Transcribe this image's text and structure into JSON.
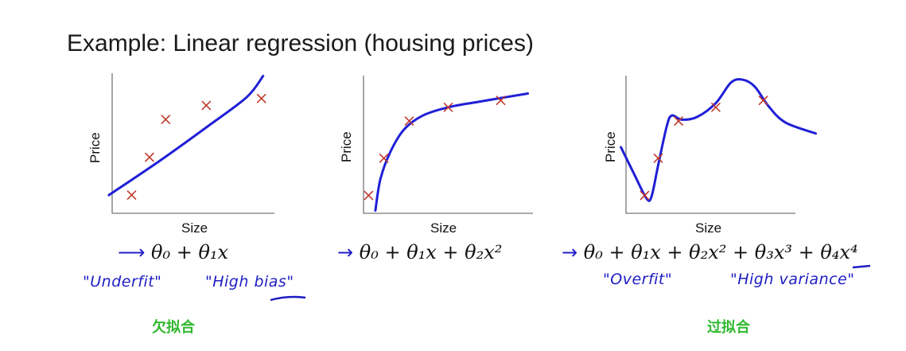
{
  "title": "Example: Linear regression (housing prices)",
  "chart_data": [
    {
      "type": "scatter",
      "xlabel": "Size",
      "ylabel": "Price",
      "points": [
        [
          0.12,
          0.13
        ],
        [
          0.23,
          0.4
        ],
        [
          0.33,
          0.67
        ],
        [
          0.58,
          0.77
        ],
        [
          0.92,
          0.82
        ]
      ],
      "fit": "linear",
      "formula": "θ₀ + θ₁x",
      "note_left": "\"Underfit\"",
      "note_right": "\"High bias\"",
      "cn_label": "欠拟合",
      "colors": {
        "points": "#c0392b",
        "curve": "#1f1fd6"
      }
    },
    {
      "type": "scatter",
      "xlabel": "Size",
      "ylabel": "Price",
      "points": [
        [
          0.03,
          0.13
        ],
        [
          0.12,
          0.4
        ],
        [
          0.27,
          0.67
        ],
        [
          0.5,
          0.77
        ],
        [
          0.81,
          0.82
        ]
      ],
      "fit": "quadratic",
      "formula": "θ₀ + θ₁x + θ₂x²",
      "cn_label": "",
      "colors": {
        "points": "#c0392b",
        "curve": "#1f1fd6"
      }
    },
    {
      "type": "scatter",
      "xlabel": "Size",
      "ylabel": "Price",
      "points": [
        [
          0.11,
          0.13
        ],
        [
          0.19,
          0.4
        ],
        [
          0.31,
          0.67
        ],
        [
          0.53,
          0.77
        ],
        [
          0.81,
          0.82
        ]
      ],
      "fit": "quartic",
      "formula": "θ₀ + θ₁x + θ₂x² + θ₃x³ + θ₄x⁴",
      "note_left": "\"Overfit\"",
      "note_right": "\"High variance\"",
      "cn_label": "过拟合",
      "colors": {
        "points": "#c0392b",
        "curve": "#1f1fd6"
      }
    }
  ]
}
